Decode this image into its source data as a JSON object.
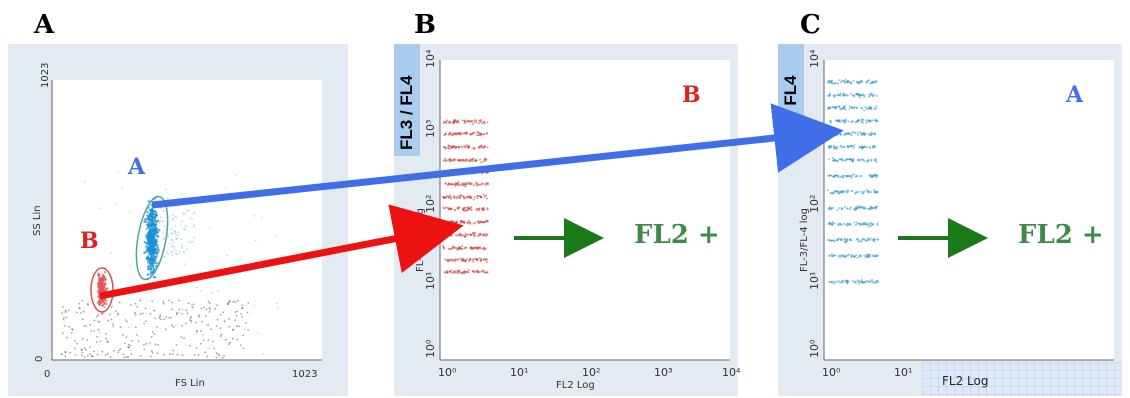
{
  "panels": {
    "a": {
      "letter": "A",
      "y_tick_top": "1023",
      "y_tick_bottom": "0",
      "x_tick_left": "0",
      "x_tick_right": "1023",
      "ylabel": "SS Lin",
      "xlabel": "FS Lin",
      "pop_a": "A",
      "pop_b": "B"
    },
    "b": {
      "letter": "B",
      "fl_box": "FL3 / FL4",
      "ylabel": "FL-3/FL-4 log",
      "xlabel": "FL2 Log",
      "pop_label": "B",
      "fl2_plus": "FL2 +",
      "y_ticks": [
        "10⁴",
        "10³",
        "10²",
        "10¹",
        "10⁰"
      ],
      "x_ticks": [
        "10⁰",
        "10¹",
        "10²",
        "10³",
        "10⁴"
      ]
    },
    "c": {
      "letter": "C",
      "fl_box": "FL3 / FL4",
      "ylabel": "FL-3/FL-4 log",
      "xlabel": "FL2 Log",
      "pop_label": "A",
      "fl2_plus": "FL2 +",
      "y_ticks": [
        "10⁴",
        "10³",
        "10²",
        "10¹",
        "10⁰"
      ],
      "x_ticks": [
        "10⁰",
        "10¹"
      ]
    }
  },
  "colors": {
    "blue_arrow": "#3f6ee8",
    "red_arrow": "#ee1111",
    "green_arrow": "#1a7a1a",
    "pop_a_text": "#3f6ee8",
    "pop_b_text": "#e02020",
    "fl2_text": "#3d8b4b",
    "plot_bg": "#e3eaf2",
    "fl_box_bg": "#a8cdee"
  }
}
